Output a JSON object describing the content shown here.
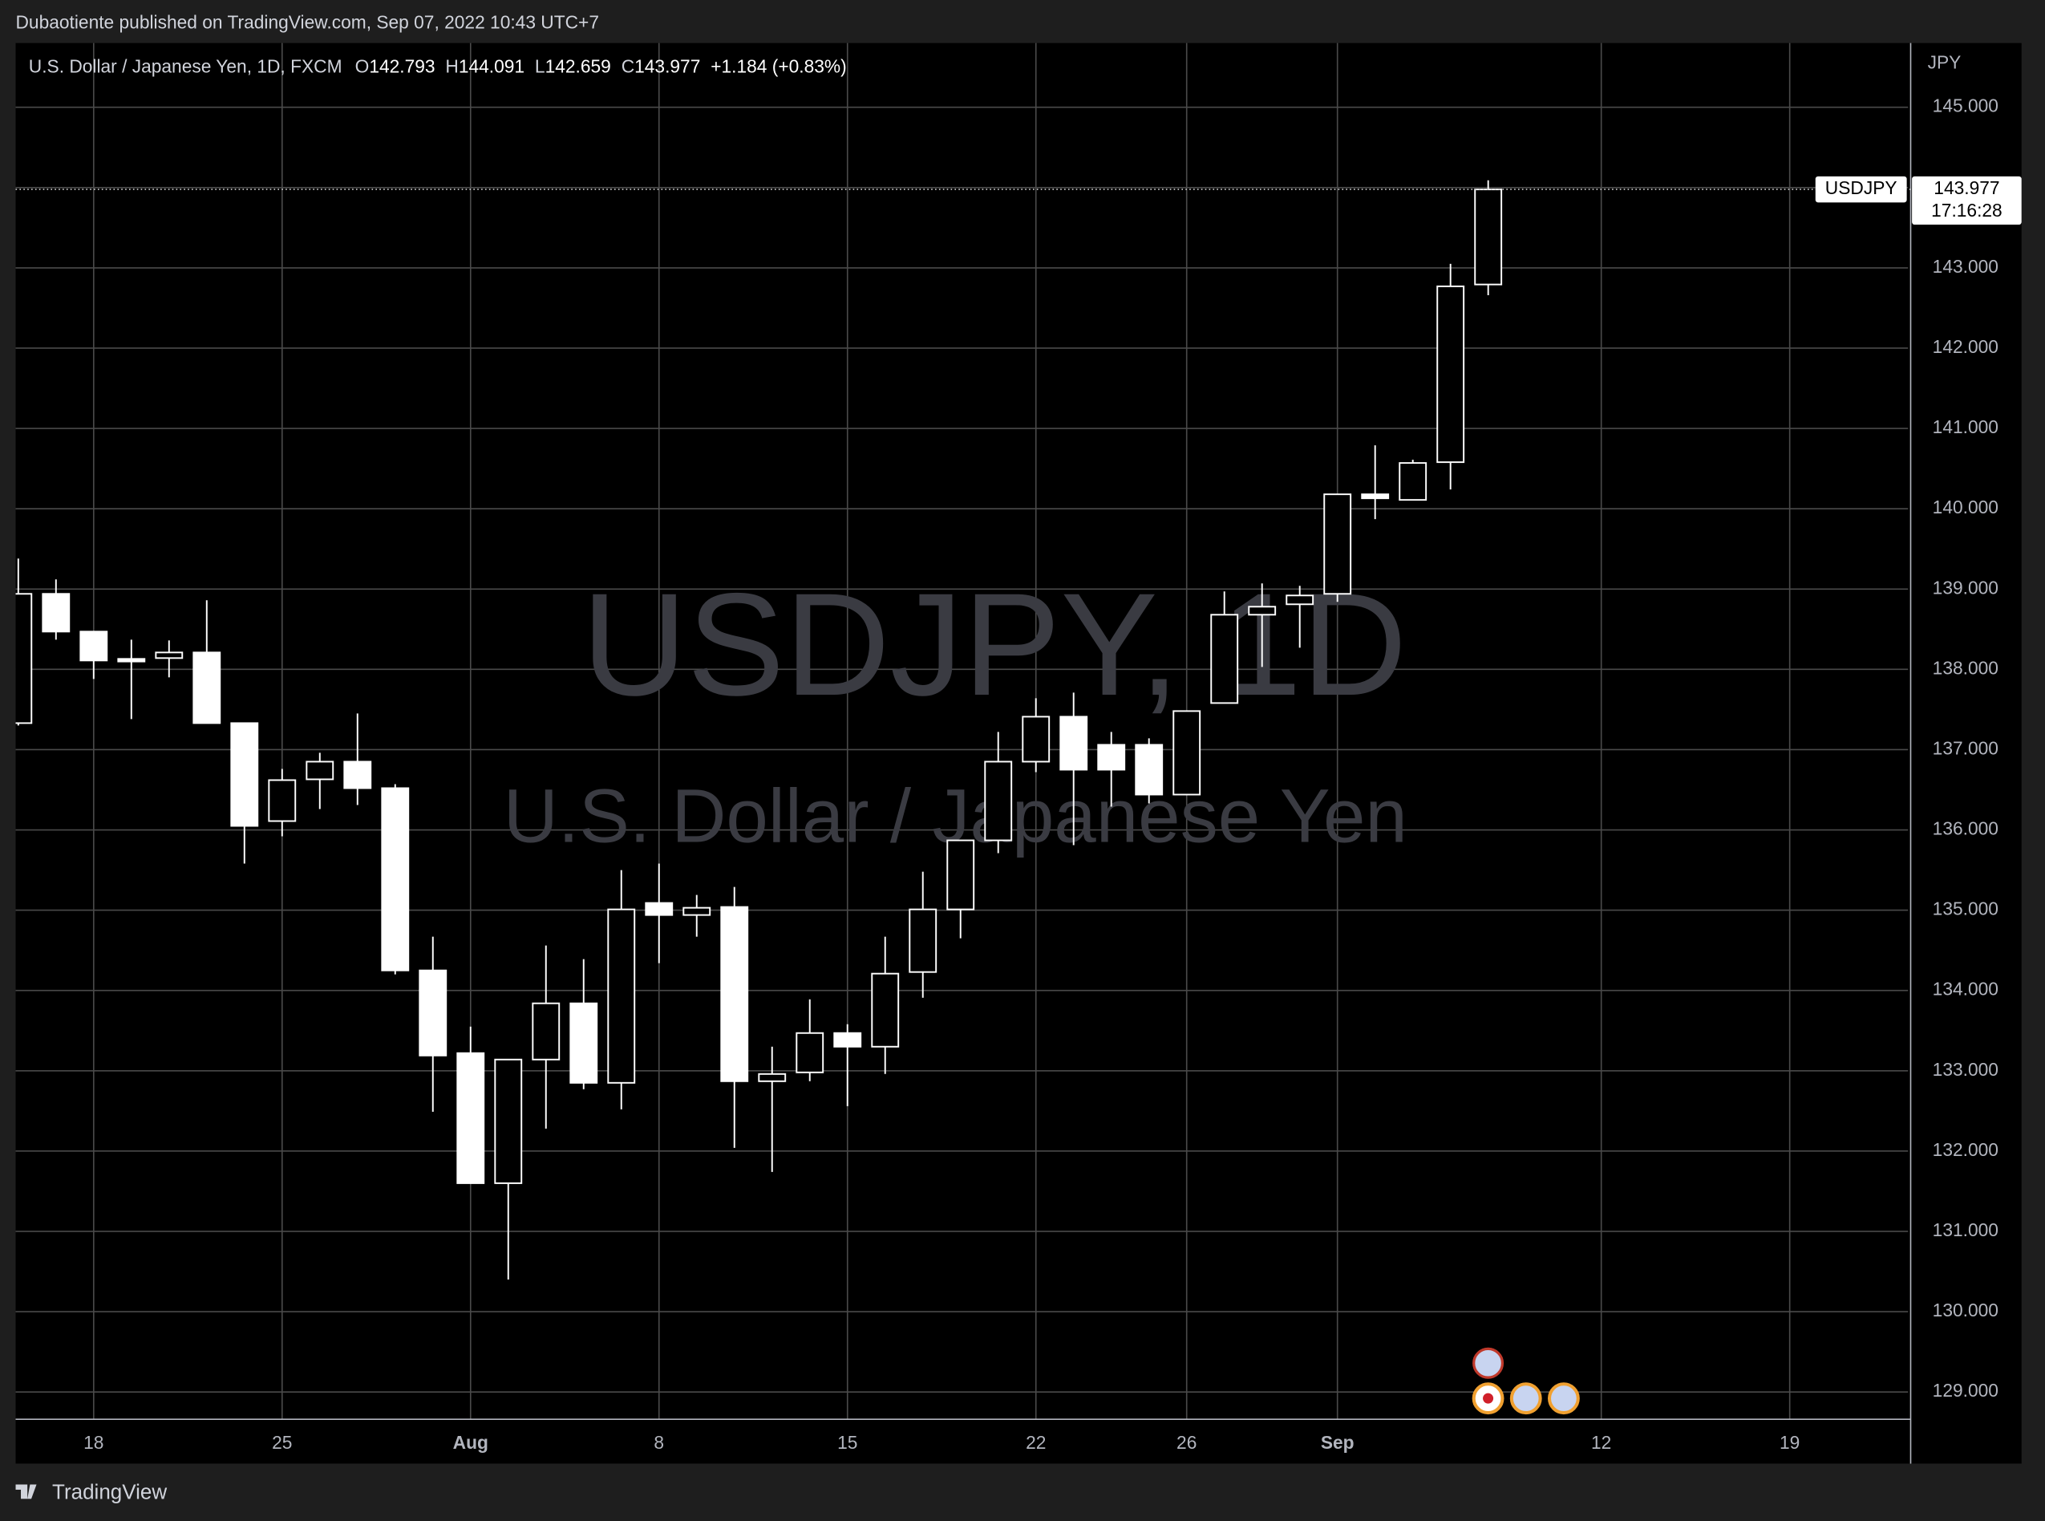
{
  "header": {
    "publisher": "Dubaotiente published on TradingView.com, Sep 07, 2022 10:43 UTC+7",
    "brand": "TradingView"
  },
  "chart_data": {
    "type": "candlestick",
    "title": "USDJPY, 1D",
    "subtitle": "U.S. Dollar / Japanese Yen",
    "legend": {
      "instrument": "U.S. Dollar / Japanese Yen, 1D, FXCM",
      "ohlc_labels": [
        "O",
        "H",
        "L",
        "C"
      ],
      "change": "+1.184 (+0.83%)"
    },
    "currency": "JPY",
    "symbol": "USDJPY",
    "countdown": "17:16:28",
    "x": [
      0,
      1,
      2,
      3,
      4,
      5,
      6,
      7,
      8,
      9,
      10,
      11,
      12,
      13,
      14,
      15,
      16,
      17,
      18,
      19,
      20,
      21,
      22,
      23,
      24,
      25,
      26,
      27,
      28,
      29,
      30,
      31,
      32,
      33,
      34,
      35,
      36,
      37,
      38,
      39
    ],
    "open": [
      137.33,
      138.94,
      138.47,
      138.13,
      138.14,
      138.21,
      137.33,
      136.11,
      136.63,
      136.85,
      136.52,
      134.25,
      133.22,
      131.6,
      133.14,
      133.84,
      132.85,
      135.09,
      134.94,
      135.04,
      132.87,
      132.98,
      133.47,
      133.3,
      134.23,
      135.01,
      135.87,
      136.85,
      137.41,
      137.06,
      137.06,
      136.44,
      137.58,
      138.68,
      138.81,
      138.94,
      140.18,
      140.11,
      140.58,
      142.793
    ],
    "high": [
      139.38,
      139.12,
      138.47,
      138.37,
      138.36,
      138.86,
      137.33,
      136.76,
      136.96,
      137.45,
      136.57,
      134.67,
      133.55,
      133.14,
      134.56,
      134.39,
      135.5,
      135.58,
      135.19,
      135.29,
      133.3,
      133.89,
      133.58,
      134.67,
      135.48,
      135.87,
      137.22,
      137.64,
      137.71,
      137.22,
      137.14,
      137.48,
      138.97,
      139.07,
      139.04,
      140.18,
      140.79,
      140.61,
      143.05,
      144.091
    ],
    "low": [
      137.3,
      138.37,
      137.88,
      137.38,
      137.9,
      137.33,
      135.58,
      135.92,
      136.26,
      136.31,
      134.2,
      132.49,
      131.6,
      130.4,
      132.28,
      132.77,
      132.52,
      134.34,
      134.67,
      132.04,
      131.74,
      132.87,
      132.56,
      132.96,
      133.91,
      134.65,
      135.71,
      136.72,
      135.81,
      136.29,
      136.33,
      136.44,
      137.58,
      138.03,
      138.27,
      138.84,
      139.87,
      140.11,
      140.24,
      142.659
    ],
    "close": [
      138.94,
      138.47,
      138.11,
      138.12,
      138.21,
      137.33,
      136.05,
      136.62,
      136.85,
      136.52,
      134.25,
      133.19,
      131.6,
      133.14,
      133.84,
      132.85,
      135.01,
      134.94,
      135.03,
      132.87,
      132.96,
      133.47,
      133.3,
      134.21,
      135.01,
      135.87,
      136.85,
      137.41,
      136.75,
      136.75,
      136.44,
      137.48,
      138.68,
      138.78,
      138.92,
      140.18,
      140.13,
      140.57,
      142.77,
      143.977
    ],
    "xlim": [
      -0.07,
      50.14
    ],
    "xticks": [
      {
        "value": 2,
        "label": "18"
      },
      {
        "value": 7,
        "label": "25"
      },
      {
        "value": 12,
        "label": "Aug"
      },
      {
        "value": 17,
        "label": "8"
      },
      {
        "value": 22,
        "label": "15"
      },
      {
        "value": 27,
        "label": "22"
      },
      {
        "value": 31,
        "label": "26"
      },
      {
        "value": 35,
        "label": "Sep"
      },
      {
        "value": 42,
        "label": "12"
      },
      {
        "value": 47,
        "label": "19"
      }
    ],
    "ylim": [
      128.66,
      145.8
    ],
    "yticks": [
      {
        "value": 129,
        "label": "129.000"
      },
      {
        "value": 130,
        "label": "130.000"
      },
      {
        "value": 131,
        "label": "131.000"
      },
      {
        "value": 132,
        "label": "132.000"
      },
      {
        "value": 133,
        "label": "133.000"
      },
      {
        "value": 134,
        "label": "134.000"
      },
      {
        "value": 135,
        "label": "135.000"
      },
      {
        "value": 136,
        "label": "136.000"
      },
      {
        "value": 137,
        "label": "137.000"
      },
      {
        "value": 138,
        "label": "138.000"
      },
      {
        "value": 139,
        "label": "139.000"
      },
      {
        "value": 140,
        "label": "140.000"
      },
      {
        "value": 141,
        "label": "141.000"
      },
      {
        "value": 142,
        "label": "142.000"
      },
      {
        "value": 143,
        "label": "143.000"
      },
      {
        "value": 144,
        "label": "144.000"
      },
      {
        "value": 145,
        "label": "145.000"
      }
    ],
    "grid": true,
    "color": "#ffffff"
  }
}
